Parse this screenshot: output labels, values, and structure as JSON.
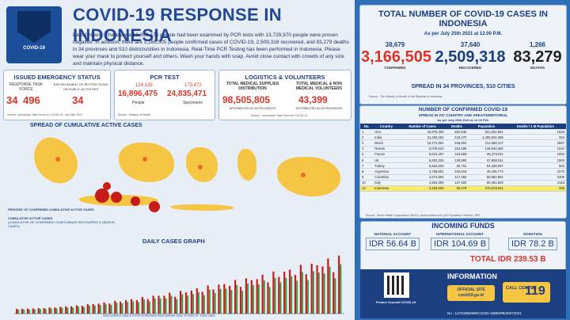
{
  "header": {
    "title": "COVID-19 RESPONSE IN INDONESIA",
    "logo_text": "COVID-19",
    "news": "Latest News : There were 16,896,475 people had been examined by PCR tests with 13,729,970 people were proven negative. In addition, there are 3,166,505 people confirmed cases of COVID-19, 2,509,318 recovered, and 83,279 deaths in 34 provinces and 510 districts/cities in Indonesia. Real-Time PCR Testing has been performed in Indonesia. Please wear your mask to protect yourself and others. Wash your hands with soap. Avoid close contact with crowds of any size and maintain physical distance."
  },
  "emergency": {
    "title": "ISSUED EMERGENCY STATUS",
    "col1_label": "RESPONSE TASK FORCE",
    "col2_label": "ENFORCEMENT OF RESTRICTIONS ON PUBLIC ACTIVITIES",
    "col1_a": "34",
    "col1_b": "496",
    "col2": "34",
    "source": "Source: Indonesian Task Force for COVID-19, July 25th 2021"
  },
  "pcr": {
    "title": "PCR TEST",
    "people_delta": "124,139",
    "specimens_delta": "173,472",
    "people": "16,896,475",
    "specimens": "24,835,471",
    "people_label": "People",
    "specimens_label": "Specimens",
    "source": "Source : Ministry of Health"
  },
  "logistics": {
    "title": "LOGISTICS & VOLUNTEERS",
    "dist_label": "TOTAL MEDICAL SUPPLIES DISTRIBUTION",
    "dist_value": "98,505,805",
    "dist_note": "DISTRIBUTED IN 34 PROVINCES",
    "vol_label": "TOTAL MEDICAL & NON MEDICAL VOLUNTEERS",
    "vol_value": "43,399",
    "vol_note": "DISTRIBUTED IN 26 PROVINCES",
    "source": "Source : Indonesian Task Force for COVID-19"
  },
  "map": {
    "title": "SPREAD OF CUMULATIVE ACTIVE CASES",
    "legend_title": "PERCENT OF CONFIRMED CUMULATIVE ACTIVE CASES",
    "legend_items": [
      "CUMULATIVE ACTIVE CASES",
      "(CUMULATIVE OF CONFIRMED CASES MINUS RECOVERED & DEATHS CASES)"
    ]
  },
  "graph": {
    "title": "DAILY CASES GRAPH",
    "legend": "Daily Confirmed Cases of COVID-19  Recovered  Total Confirmed Cases of COVID-19 - Active Cases"
  },
  "totals": {
    "title": "TOTAL NUMBER OF COVID-19 CASES IN INDONESIA",
    "date": "As per July 25th 2021 at 12.00 P.M.",
    "confirmed_delta": "38,679",
    "recovered_delta": "37,640",
    "deaths_delta": "1,266",
    "confirmed": "3,166,505",
    "recovered": "2,509,318",
    "deaths": "83,279",
    "confirmed_label": "CONFIRMED",
    "recovered_label": "RECOVERED",
    "deaths_label": "DEATHS",
    "spread": "SPREAD IN 34 PROVINCES, 510 CITIES",
    "source": "Source : The Ministry of Health of the Republic of Indonesia"
  },
  "table": {
    "title": "NUMBER OF CONFIRMED COVID-19",
    "subtitle": "SPREAD IN 237 COUNTRY AND AREA/TERRITORIAL",
    "date": "As per July 25th 2021 at 12.00 P.M.",
    "headers": [
      "No.",
      "Country",
      "Number of Cases",
      "Deaths",
      "Population",
      "Deaths / 1 M Population"
    ],
    "rows": [
      [
        "1",
        "USA",
        "33,875,395",
        "604,546",
        "331,002,651",
        "1826"
      ],
      [
        "2",
        "India",
        "31,293,062",
        "419,470",
        "1,380,004,385",
        "304"
      ],
      [
        "3",
        "Brazil",
        "19,473,954",
        "545,604",
        "212,559,417",
        "2567"
      ],
      [
        "4",
        "Russia",
        "6,078,522",
        "152,296",
        "145,934,462",
        "1044"
      ],
      [
        "5",
        "France",
        "5,813,457",
        "110,566",
        "65,273,511",
        "1694"
      ],
      [
        "6",
        "UK",
        "5,602,325",
        "128,980",
        "67,886,011",
        "1900"
      ],
      [
        "7",
        "Turkey",
        "5,563,903",
        "50,761",
        "84,339,067",
        "602"
      ],
      [
        "8",
        "Argentina",
        "4,798,851",
        "102,818",
        "45,195,774",
        "2275"
      ],
      [
        "9",
        "Colombia",
        "4,674,994",
        "117,482",
        "50,882,891",
        "2309"
      ],
      [
        "10",
        "Italy",
        "4,302,393",
        "127,920",
        "60,461,826",
        "2116"
      ],
      [
        "14",
        "Indonesia",
        "3,166,505",
        "83,279",
        "270,203,911",
        "308"
      ]
    ],
    "source": "Source : World Health Organization (WHO), worldometers.info (UN Population Division), BPS"
  },
  "funds": {
    "title": "INCOMING FUNDS",
    "national_label": "NATIONAL ACCOUNT",
    "national": "IDR 56.64 B",
    "international_label": "INTERNATIONAL ACCOUNT",
    "international": "IDR 104.69 B",
    "donation_label": "DONATION",
    "donation": "IDR 78.2 B",
    "total": "TOTAL IDR 239.53 B"
  },
  "info": {
    "title": "INFORMATION",
    "site_label": "OFFICIAL SITE",
    "site": "covid19.go.id",
    "call_label": "CALL CENTER",
    "call_number": "119",
    "pmp": "Protect Yourself COVID-19",
    "reference": "No : 147/0496/099/COVID-19/BNPB/25072021"
  },
  "colors": {
    "navy": "#1c3f82",
    "red": "#d8342a",
    "yellow": "#f6c543"
  }
}
